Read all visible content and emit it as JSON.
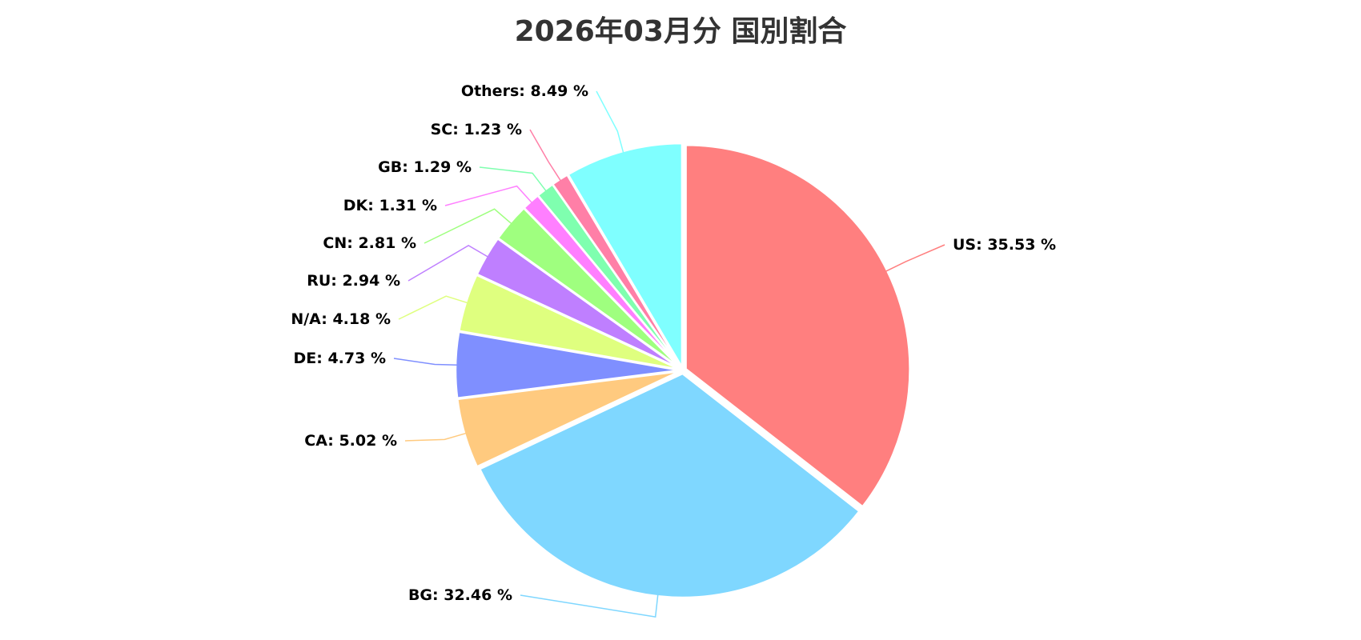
{
  "chart_data": {
    "type": "pie",
    "title": "2026年03月分 国別割合",
    "slices": [
      {
        "label": "US: 35.53 %",
        "name": "US",
        "value": 35.53,
        "color": "#ff7f7f"
      },
      {
        "label": "BG: 32.46 %",
        "name": "BG",
        "value": 32.46,
        "color": "#7fd7ff"
      },
      {
        "label": "CA: 5.02 %",
        "name": "CA",
        "value": 5.02,
        "color": "#ffca7f"
      },
      {
        "label": "DE: 4.73 %",
        "name": "DE",
        "value": 4.73,
        "color": "#7f8fff"
      },
      {
        "label": "N/A: 4.18 %",
        "name": "N/A",
        "value": 4.18,
        "color": "#dfff7f"
      },
      {
        "label": "RU: 2.94 %",
        "name": "RU",
        "value": 2.94,
        "color": "#bf7fff"
      },
      {
        "label": "CN: 2.81 %",
        "name": "CN",
        "value": 2.81,
        "color": "#9fff7f"
      },
      {
        "label": "DK: 1.31 %",
        "name": "DK",
        "value": 1.31,
        "color": "#ff7fff"
      },
      {
        "label": "GB: 1.29 %",
        "name": "GB",
        "value": 1.29,
        "color": "#7fffaf"
      },
      {
        "label": "SC: 1.23 %",
        "name": "SC",
        "value": 1.23,
        "color": "#ff7fa7"
      },
      {
        "label": "Others: 8.49 %",
        "name": "Others",
        "value": 8.49,
        "color": "#7fffff"
      }
    ],
    "start": "12 o'clock",
    "direction": "clockwise",
    "legend": "none"
  }
}
